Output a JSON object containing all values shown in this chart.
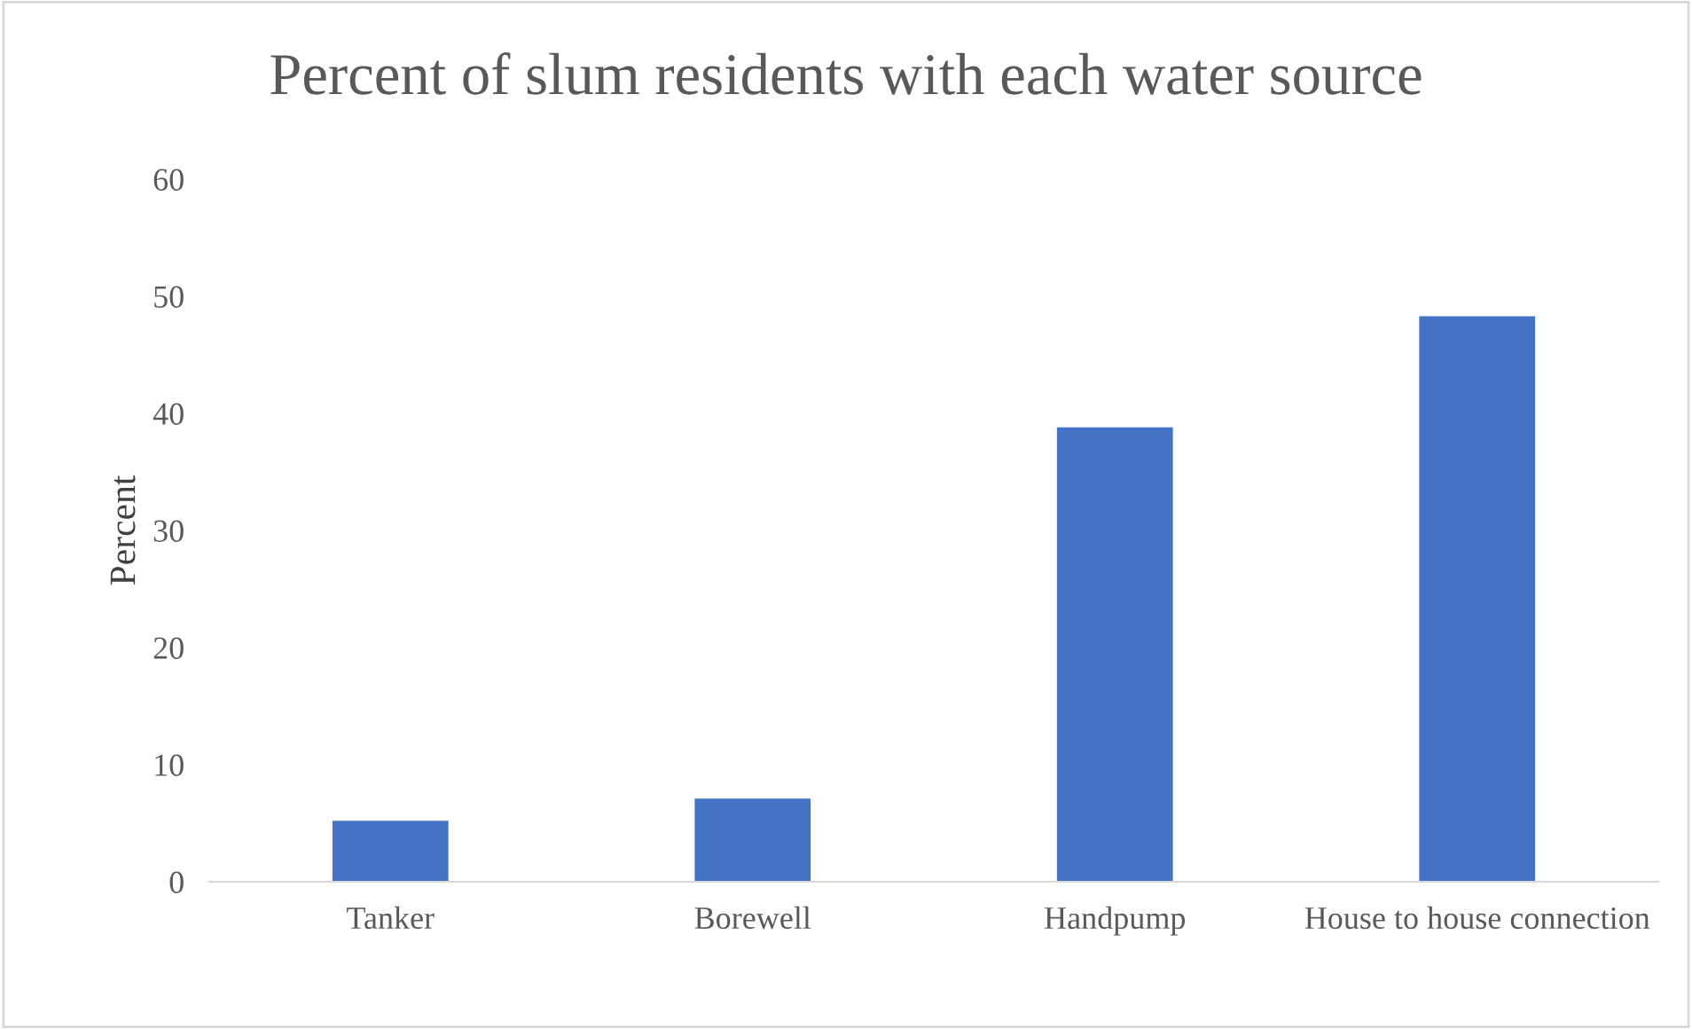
{
  "chart_data": {
    "type": "bar",
    "title": "Percent of slum residents with each water source",
    "ylabel": "Percent",
    "categories": [
      "Tanker",
      "Borewell",
      "Handpump",
      "House to house connection"
    ],
    "values": [
      5.2,
      7.1,
      38.8,
      48.3
    ],
    "color": "#4472c4",
    "ylim": [
      0,
      60
    ],
    "yticks": [
      0,
      10,
      20,
      30,
      40,
      50,
      60
    ],
    "grid": false,
    "legend": false
  }
}
